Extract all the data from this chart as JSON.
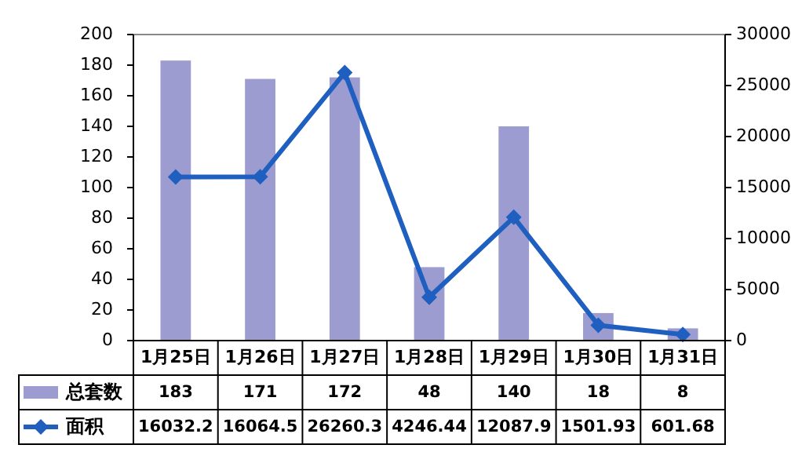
{
  "chart_data": {
    "type": "bar",
    "categories": [
      "1月25日",
      "1月26日",
      "1月27日",
      "1月28日",
      "1月29日",
      "1月30日",
      "1月31日"
    ],
    "series": [
      {
        "name": "总套数",
        "color": "#9c9cd0",
        "values": [
          183,
          171,
          172,
          48,
          140,
          18,
          8
        ]
      },
      {
        "name": "面积",
        "type": "line",
        "axis": "y2",
        "color": "#1f5fc0",
        "marker": "diamond",
        "values": [
          16032.2,
          16064.5,
          26260.3,
          4246.44,
          12087.9,
          1501.93,
          601.68
        ]
      }
    ],
    "ylim": [
      0,
      200
    ],
    "yticks": [
      0,
      20,
      40,
      60,
      80,
      100,
      120,
      140,
      160,
      180,
      200
    ],
    "y2lim": [
      0,
      30000
    ],
    "y2ticks": [
      0,
      5000,
      10000,
      15000,
      20000,
      25000,
      30000
    ],
    "data_labels": true,
    "legend": "bottom"
  }
}
